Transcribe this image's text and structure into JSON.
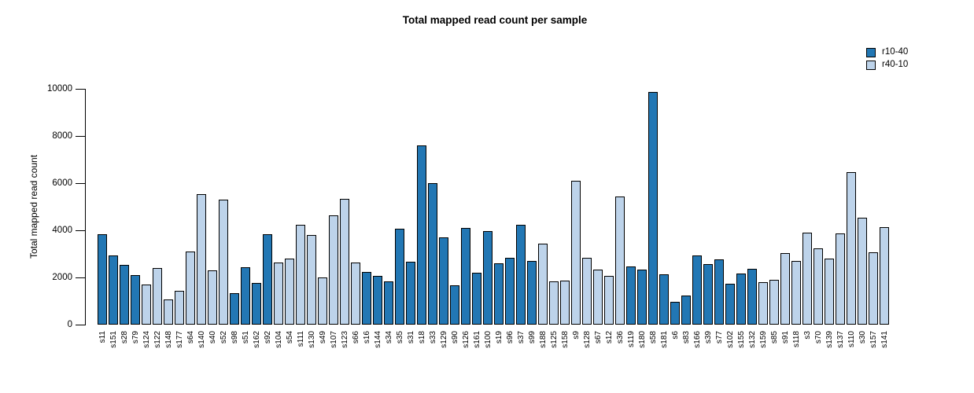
{
  "chart_data": {
    "type": "bar",
    "title": "Total mapped read count per sample",
    "xlabel": "",
    "ylabel": "Total mapped read count",
    "ylim": [
      0,
      10000
    ],
    "yticks": [
      0,
      2000,
      4000,
      6000,
      8000,
      10000
    ],
    "grid": false,
    "legend_position": "top-right",
    "legend": [
      {
        "label": "r10-40",
        "color": "#2277b4"
      },
      {
        "label": "r40-10",
        "color": "#bdd3ea"
      }
    ],
    "bar_border_color": "#000000",
    "categories": [
      "s11",
      "s151",
      "s28",
      "s79",
      "s124",
      "s122",
      "s148",
      "s177",
      "s64",
      "s140",
      "s40",
      "s52",
      "s98",
      "s51",
      "s162",
      "s92",
      "s104",
      "s54",
      "s111",
      "s130",
      "s49",
      "s107",
      "s123",
      "s66",
      "s16",
      "s144",
      "s34",
      "s35",
      "s31",
      "s18",
      "s33",
      "s129",
      "s90",
      "s126",
      "s161",
      "s100",
      "s19",
      "s96",
      "s37",
      "s99",
      "s188",
      "s125",
      "s158",
      "s9",
      "s128",
      "s67",
      "s12",
      "s36",
      "s119",
      "s180",
      "s58",
      "s181",
      "s6",
      "s83",
      "s166",
      "s39",
      "s77",
      "s102",
      "s155",
      "s132",
      "s159",
      "s85",
      "s91",
      "s118",
      "s3",
      "s70",
      "s139",
      "s137",
      "s110",
      "s30",
      "s157",
      "s141"
    ],
    "values": [
      3850,
      2950,
      2550,
      2100,
      1700,
      2400,
      1080,
      1430,
      3100,
      5550,
      2310,
      5300,
      1340,
      2430,
      1770,
      3820,
      2620,
      2790,
      4240,
      3790,
      1990,
      4630,
      5340,
      2620,
      2240,
      2080,
      1820,
      4060,
      2660,
      7600,
      5990,
      3690,
      1660,
      4100,
      2210,
      3960,
      2600,
      2820,
      4240,
      2710,
      3430,
      1820,
      1880,
      6100,
      2820,
      2340,
      2080,
      5430,
      2460,
      2320,
      9880,
      2120,
      970,
      1230,
      2930,
      2570,
      2770,
      1740,
      2160,
      2380,
      1800,
      1910,
      3020,
      2690,
      3910,
      3230,
      2800,
      3880,
      6460,
      4540,
      3070,
      4120
    ],
    "groups": [
      "r10-40",
      "r10-40",
      "r10-40",
      "r10-40",
      "r40-10",
      "r40-10",
      "r40-10",
      "r40-10",
      "r40-10",
      "r40-10",
      "r40-10",
      "r40-10",
      "r10-40",
      "r10-40",
      "r10-40",
      "r10-40",
      "r40-10",
      "r40-10",
      "r40-10",
      "r40-10",
      "r40-10",
      "r40-10",
      "r40-10",
      "r40-10",
      "r10-40",
      "r10-40",
      "r10-40",
      "r10-40",
      "r10-40",
      "r10-40",
      "r10-40",
      "r10-40",
      "r10-40",
      "r10-40",
      "r10-40",
      "r10-40",
      "r10-40",
      "r10-40",
      "r10-40",
      "r10-40",
      "r40-10",
      "r40-10",
      "r40-10",
      "r40-10",
      "r40-10",
      "r40-10",
      "r40-10",
      "r40-10",
      "r10-40",
      "r10-40",
      "r10-40",
      "r10-40",
      "r10-40",
      "r10-40",
      "r10-40",
      "r10-40",
      "r10-40",
      "r10-40",
      "r10-40",
      "r10-40",
      "r40-10",
      "r40-10",
      "r40-10",
      "r40-10",
      "r40-10",
      "r40-10",
      "r40-10",
      "r40-10",
      "r40-10",
      "r40-10",
      "r40-10",
      "r40-10"
    ]
  }
}
